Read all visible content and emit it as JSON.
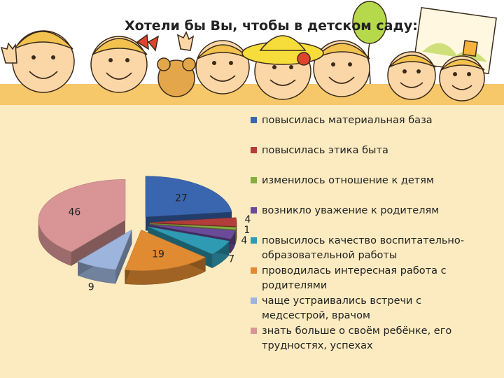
{
  "title": "Хотели бы Вы, чтобы в детском саду:",
  "colors": {
    "background": "#fcebc0",
    "series": [
      "#3a66b0",
      "#b33d3a",
      "#86ad3e",
      "#6a4b9a",
      "#2f9bb3",
      "#e08a32",
      "#9db4dc",
      "#d99595"
    ]
  },
  "chart_data": {
    "type": "pie",
    "variant": "3d-exploded",
    "categories": [
      "повысилась материальная база",
      "повысилась этика быта",
      "изменилось отношение к детям",
      "возникло уважение к родителям",
      "повысилось качество воспитательно-образовательной работы",
      " проводилась интересная работа с родителями",
      "чаще устраивались встречи с медсестрой, врачом",
      "знать больше о своём ребёнке, его трудностях, успехах"
    ],
    "values": [
      27,
      4,
      1,
      4,
      7,
      19,
      9,
      46
    ],
    "data_labels": [
      "27",
      "4",
      "1",
      "4",
      "7",
      "19",
      "9",
      "46"
    ],
    "legend_position": "right"
  }
}
